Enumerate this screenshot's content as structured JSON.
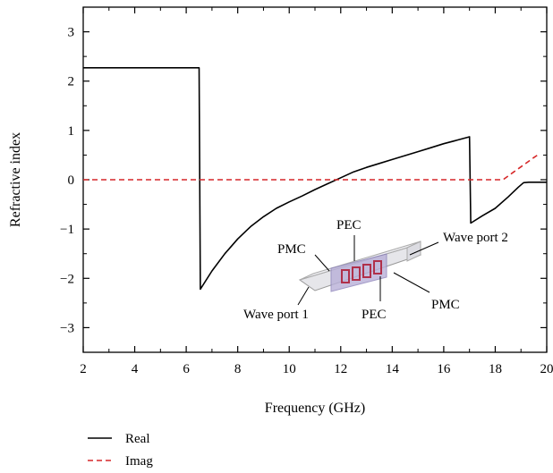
{
  "chart_data": {
    "type": "line",
    "xlabel": "Frequency (GHz)",
    "ylabel": "Refractive index",
    "xlim": [
      2,
      20
    ],
    "ylim": [
      -3.5,
      3.5
    ],
    "xticks": [
      2,
      4,
      6,
      8,
      10,
      12,
      14,
      16,
      18,
      20
    ],
    "yticks": [
      -3,
      -2,
      -1,
      0,
      1,
      2,
      3
    ],
    "ytick_labels": [
      "−3",
      "−2",
      "−1",
      "0",
      "1",
      "2",
      "3"
    ],
    "grid": false,
    "legend_position": "bottom-left, below plot",
    "series": [
      {
        "name": "Real",
        "color": "#000000",
        "style": "solid",
        "points": [
          [
            2.0,
            2.27
          ],
          [
            6.5,
            2.27
          ],
          [
            6.5,
            2.27
          ],
          [
            6.55,
            -2.22
          ],
          [
            7.0,
            -1.85
          ],
          [
            7.5,
            -1.5
          ],
          [
            8.0,
            -1.2
          ],
          [
            8.5,
            -0.95
          ],
          [
            9.0,
            -0.75
          ],
          [
            9.5,
            -0.58
          ],
          [
            10.0,
            -0.45
          ],
          [
            10.5,
            -0.33
          ],
          [
            11.0,
            -0.2
          ],
          [
            11.5,
            -0.08
          ],
          [
            12.0,
            0.04
          ],
          [
            12.5,
            0.16
          ],
          [
            13.0,
            0.25
          ],
          [
            13.5,
            0.33
          ],
          [
            14.0,
            0.41
          ],
          [
            14.5,
            0.49
          ],
          [
            15.0,
            0.57
          ],
          [
            15.5,
            0.65
          ],
          [
            16.0,
            0.73
          ],
          [
            16.5,
            0.8
          ],
          [
            17.0,
            0.87
          ],
          [
            17.05,
            -0.88
          ],
          [
            17.5,
            -0.73
          ],
          [
            18.0,
            -0.58
          ],
          [
            18.5,
            -0.35
          ],
          [
            18.9,
            -0.15
          ],
          [
            19.1,
            -0.06
          ],
          [
            19.3,
            -0.05
          ],
          [
            20.0,
            -0.05
          ]
        ]
      },
      {
        "name": "Imag",
        "color": "#d62728",
        "style": "dashed",
        "points": [
          [
            2.0,
            0.0
          ],
          [
            18.3,
            0.0
          ],
          [
            18.7,
            0.15
          ],
          [
            19.1,
            0.3
          ],
          [
            19.5,
            0.45
          ],
          [
            19.7,
            0.52
          ]
        ]
      }
    ],
    "annotations": [
      "PEC",
      "PMC",
      "Wave port 2",
      "PMC",
      "Wave port 1",
      "PEC"
    ]
  }
}
